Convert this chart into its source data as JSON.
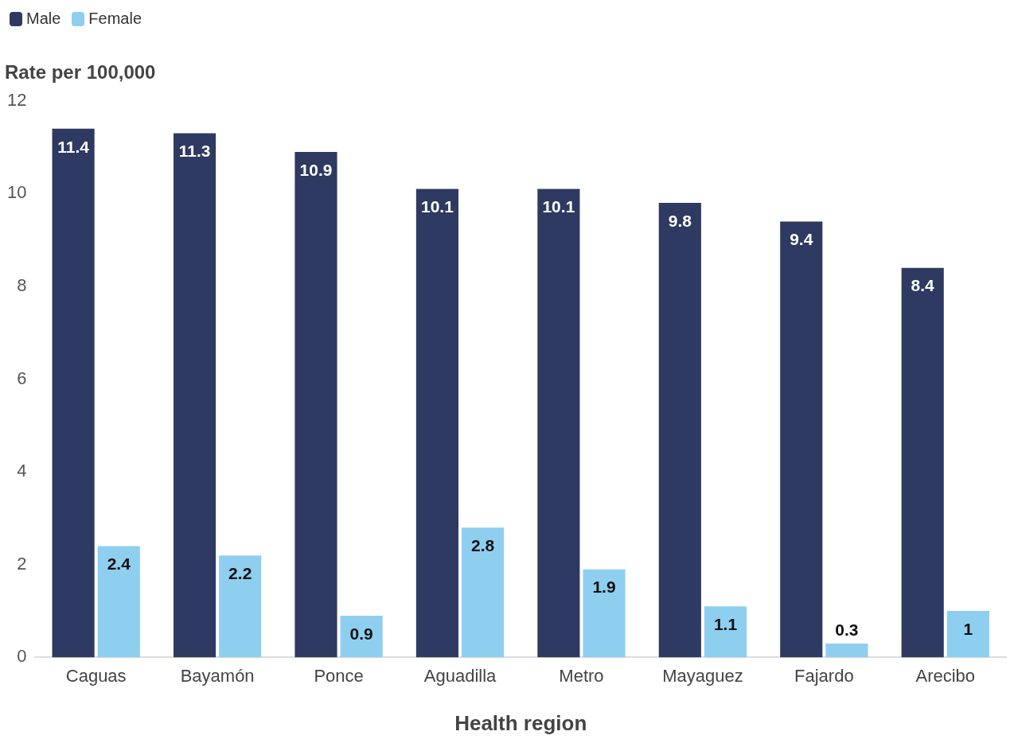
{
  "chart_data": {
    "type": "bar",
    "xlabel": "Health region",
    "ylabel": "Rate per 100,000",
    "categories": [
      "Caguas",
      "Bayamón",
      "Ponce",
      "Aguadilla",
      "Metro",
      "Mayaguez",
      "Fajardo",
      "Arecibo"
    ],
    "series": [
      {
        "name": "Male",
        "color": "#2f3a62",
        "values": [
          11.4,
          11.3,
          10.9,
          10.1,
          10.1,
          9.8,
          9.4,
          8.4
        ]
      },
      {
        "name": "Female",
        "color": "#8ecff0",
        "values": [
          2.4,
          2.2,
          0.9,
          2.8,
          1.9,
          1.1,
          0.3,
          1
        ]
      }
    ],
    "ylim": [
      0,
      12
    ],
    "yticks": [
      0,
      2,
      4,
      6,
      8,
      10,
      12
    ],
    "legend": "top left",
    "data_labels": true
  }
}
